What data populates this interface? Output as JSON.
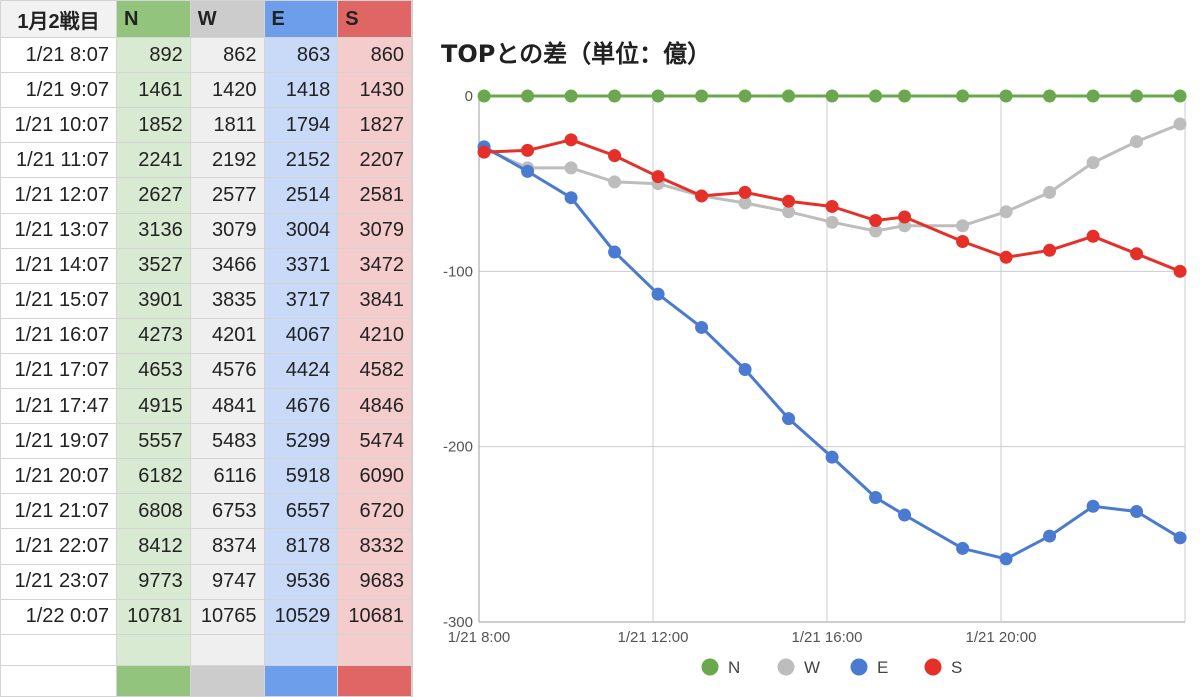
{
  "sheet": {
    "corner": "1月2戦目",
    "headers": [
      "N",
      "W",
      "E",
      "S"
    ],
    "rows": [
      {
        "time": "1/21 8:07",
        "N": "892",
        "W": "862",
        "E": "863",
        "S": "860"
      },
      {
        "time": "1/21 9:07",
        "N": "1461",
        "W": "1420",
        "E": "1418",
        "S": "1430"
      },
      {
        "time": "1/21 10:07",
        "N": "1852",
        "W": "1811",
        "E": "1794",
        "S": "1827"
      },
      {
        "time": "1/21 11:07",
        "N": "2241",
        "W": "2192",
        "E": "2152",
        "S": "2207"
      },
      {
        "time": "1/21 12:07",
        "N": "2627",
        "W": "2577",
        "E": "2514",
        "S": "2581"
      },
      {
        "time": "1/21 13:07",
        "N": "3136",
        "W": "3079",
        "E": "3004",
        "S": "3079"
      },
      {
        "time": "1/21 14:07",
        "N": "3527",
        "W": "3466",
        "E": "3371",
        "S": "3472"
      },
      {
        "time": "1/21 15:07",
        "N": "3901",
        "W": "3835",
        "E": "3717",
        "S": "3841"
      },
      {
        "time": "1/21 16:07",
        "N": "4273",
        "W": "4201",
        "E": "4067",
        "S": "4210"
      },
      {
        "time": "1/21 17:07",
        "N": "4653",
        "W": "4576",
        "E": "4424",
        "S": "4582"
      },
      {
        "time": "1/21 17:47",
        "N": "4915",
        "W": "4841",
        "E": "4676",
        "S": "4846"
      },
      {
        "time": "1/21 19:07",
        "N": "5557",
        "W": "5483",
        "E": "5299",
        "S": "5474"
      },
      {
        "time": "1/21 20:07",
        "N": "6182",
        "W": "6116",
        "E": "5918",
        "S": "6090"
      },
      {
        "time": "1/21 21:07",
        "N": "6808",
        "W": "6753",
        "E": "6557",
        "S": "6720"
      },
      {
        "time": "1/21 22:07",
        "N": "8412",
        "W": "8374",
        "E": "8178",
        "S": "8332"
      },
      {
        "time": "1/21 23:07",
        "N": "9773",
        "W": "9747",
        "E": "9536",
        "S": "9683"
      },
      {
        "time": "1/22 0:07",
        "N": "10781",
        "W": "10765",
        "E": "10529",
        "S": "10681"
      }
    ]
  },
  "chart_data": {
    "type": "line",
    "title": "TOPとの差（単位：億）",
    "x": [
      "1/21 8:07",
      "1/21 9:07",
      "1/21 10:07",
      "1/21 11:07",
      "1/21 12:07",
      "1/21 13:07",
      "1/21 14:07",
      "1/21 15:07",
      "1/21 16:07",
      "1/21 17:07",
      "1/21 17:47",
      "1/21 19:07",
      "1/21 20:07",
      "1/21 21:07",
      "1/21 22:07",
      "1/21 23:07",
      "1/22 0:07"
    ],
    "xticks": [
      "1/21 8:00",
      "1/21 12:00",
      "1/21 16:00",
      "1/21 20:00"
    ],
    "yticks": [
      "0",
      "-100",
      "-200",
      "-300"
    ],
    "ylim": [
      -300,
      0
    ],
    "grid": true,
    "legend_position": "bottom",
    "series": [
      {
        "name": "N",
        "color": "#6aa84f",
        "values": [
          0,
          0,
          0,
          0,
          0,
          0,
          0,
          0,
          0,
          0,
          0,
          0,
          0,
          0,
          0,
          0,
          0
        ]
      },
      {
        "name": "W",
        "color": "#bdbdbd",
        "values": [
          -30,
          -41,
          -41,
          -49,
          -50,
          -57,
          -61,
          -66,
          -72,
          -77,
          -74,
          -74,
          -66,
          -55,
          -38,
          -26,
          -16
        ]
      },
      {
        "name": "E",
        "color": "#4a7bd0",
        "values": [
          -29,
          -43,
          -58,
          -89,
          -113,
          -132,
          -156,
          -184,
          -206,
          -229,
          -239,
          -258,
          -264,
          -251,
          -234,
          -237,
          -252
        ]
      },
      {
        "name": "S",
        "color": "#e5302a",
        "values": [
          -32,
          -31,
          -25,
          -34,
          -46,
          -57,
          -55,
          -60,
          -63,
          -71,
          -69,
          -83,
          -92,
          -88,
          -80,
          -90,
          -100
        ]
      }
    ]
  }
}
